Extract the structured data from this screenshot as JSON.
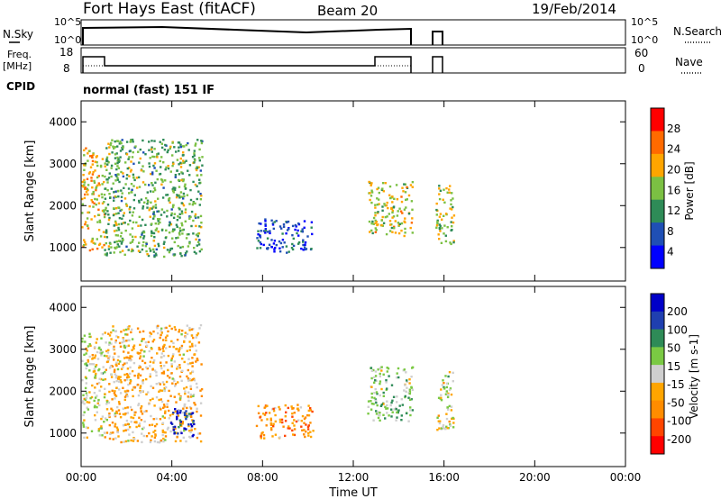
{
  "header": {
    "station": "Fort Hays East (fitACF)",
    "beam": "Beam 20",
    "date": "19/Feb/2014"
  },
  "left_labels": {
    "nsky": "N.Sky",
    "freq": "Freq.",
    "freq_unit": "[MHz]",
    "cpid": "CPID",
    "cpid_value": "normal (fast) 151 IF"
  },
  "right_labels": {
    "nsearch": "N.Search",
    "nave": "Nave"
  },
  "noise_axis": {
    "left_ticks": [
      "10^5",
      "10^0"
    ],
    "right_ticks": [
      "10^5",
      "10^0"
    ]
  },
  "freq_axis": {
    "left_ticks": [
      "18",
      "8"
    ],
    "right_ticks": [
      "60",
      "0"
    ]
  },
  "time_axis": {
    "label": "Time UT",
    "ticks": [
      "00:00",
      "04:00",
      "08:00",
      "12:00",
      "16:00",
      "20:00",
      "00:00"
    ]
  },
  "colors": {
    "power_scale": [
      "#0000ff",
      "#1f4fb5",
      "#2e8b57",
      "#7bc043",
      "#ffa500",
      "#ff6a00",
      "#ff0000"
    ],
    "velocity_scale": [
      "#ff0000",
      "#ff4500",
      "#ff8c00",
      "#ffa500",
      "#cfcfcf",
      "#7ac943",
      "#2e8b57",
      "#1f3fb0",
      "#0000c8"
    ]
  },
  "chart_data": [
    {
      "type": "heatmap",
      "name": "power",
      "ylabel": "Slant Range [km]",
      "xlabel": "",
      "colorbar_label": "Power [dB]",
      "colorbar_ticks": [
        "28",
        "24",
        "20",
        "16",
        "12",
        "8",
        "4"
      ],
      "y_ticks": [
        "4000",
        "3000",
        "2000",
        "1000"
      ],
      "xlim_hours": [
        0,
        24
      ],
      "ylim_km": [
        200,
        4500
      ],
      "echo_regions": [
        {
          "t_start": 0.0,
          "t_end": 1.0,
          "r_low": 900,
          "r_high": 3400,
          "dominant_db": 20
        },
        {
          "t_start": 1.0,
          "t_end": 5.3,
          "r_low": 800,
          "r_high": 3600,
          "dominant_db": 14
        },
        {
          "t_start": 7.7,
          "t_end": 10.2,
          "r_low": 900,
          "r_high": 1700,
          "dominant_db": 6
        },
        {
          "t_start": 12.6,
          "t_end": 14.6,
          "r_low": 1300,
          "r_high": 2600,
          "dominant_db": 18
        },
        {
          "t_start": 15.6,
          "t_end": 16.4,
          "r_low": 1100,
          "r_high": 2500,
          "dominant_db": 16
        }
      ]
    },
    {
      "type": "heatmap",
      "name": "velocity",
      "ylabel": "Slant Range [km]",
      "xlabel": "Time UT",
      "colorbar_label": "Velocity [m s-1]",
      "colorbar_ticks": [
        "200",
        "100",
        "50",
        "15",
        "-15",
        "-50",
        "-100",
        "-200"
      ],
      "y_ticks": [
        "4000",
        "3000",
        "2000",
        "1000"
      ],
      "xlim_hours": [
        0,
        24
      ],
      "ylim_km": [
        200,
        4500
      ],
      "echo_regions": [
        {
          "t_start": 0.0,
          "t_end": 1.0,
          "r_low": 900,
          "r_high": 3400,
          "dominant_ms": 0
        },
        {
          "t_start": 1.0,
          "t_end": 5.3,
          "r_low": 800,
          "r_high": 3600,
          "dominant_ms": -50
        },
        {
          "t_start": 3.9,
          "t_end": 5.0,
          "r_low": 900,
          "r_high": 1600,
          "dominant_ms": 200
        },
        {
          "t_start": 7.7,
          "t_end": 10.2,
          "r_low": 900,
          "r_high": 1700,
          "dominant_ms": -100
        },
        {
          "t_start": 12.6,
          "t_end": 14.6,
          "r_low": 1300,
          "r_high": 2600,
          "dominant_ms": 50
        },
        {
          "t_start": 15.6,
          "t_end": 16.4,
          "r_low": 1100,
          "r_high": 2500,
          "dominant_ms": 0
        }
      ]
    }
  ]
}
